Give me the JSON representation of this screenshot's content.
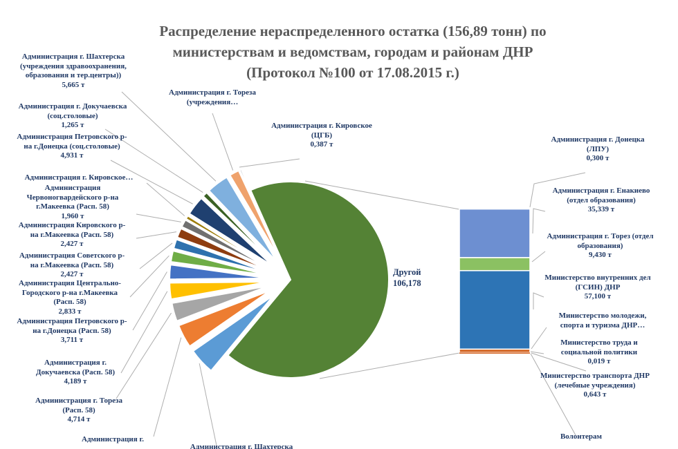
{
  "title": "Распределение нераспределенного остатка (156,89 тонн) по\nминистерствам и ведомствам, городам и районам ДНР\n(Протокол №100 от 17.08.2015 г.)",
  "chart_data": {
    "type": "pie",
    "subtype": "bar-of-pie",
    "title": "Распределение нераспределенного остатка (156,89 тонн) по министерствам и ведомствам, городам и районам ДНР (Протокол №100 от 17.08.2015 г.)",
    "total_label": "156,89 тонн",
    "units": "т",
    "legend": "none",
    "other_slice": {
      "label": "Другой",
      "value_display": "106,178",
      "value": 106.178,
      "color": "#548235"
    },
    "slices": [
      {
        "label": "Администрация г. Кировское\n(ЦГБ)",
        "value_display": "0,387 т",
        "value": 0.387,
        "color": "#44546A"
      },
      {
        "label": "Администрация  г. Тореза\n(учреждения…",
        "value_display": "",
        "value": 2.5,
        "color": "#EFA26C"
      },
      {
        "label": "Администрация г. Шахтерска\n(учреждения здравоохранения,\nобразования и тер.центры))",
        "value_display": "5,665 т",
        "value": 5.665,
        "color": "#7FB0DE"
      },
      {
        "label": "Администрация  г. Докучаевска\n(соц.столовые)",
        "value_display": "1,265 т",
        "value": 1.265,
        "color": "#3A6124"
      },
      {
        "label": "Администрация Петровского р-\nна г.Донецка (соц.столовые)",
        "value_display": "4,931 т",
        "value": 4.931,
        "color": "#1F4070"
      },
      {
        "label": "Администрация г. Кировское…",
        "value_display": "",
        "value": 0.9,
        "color": "#9D7D0A"
      },
      {
        "label": "Администрация\nЧервоногвардейского р-на\nг.Макеевка (Расп. 58)",
        "value_display": "1,960 т",
        "value": 1.96,
        "color": "#707070"
      },
      {
        "label": "Администрация Кировского р-\nна г.Макеевка (Расп. 58)",
        "value_display": "2,427 т",
        "value": 2.427,
        "color": "#8E3D10"
      },
      {
        "label": "Администрация Советского р-\nна г.Макеевка (Расп. 58)",
        "value_display": "2,427 т",
        "value": 2.427,
        "color": "#2E71AE"
      },
      {
        "label": "Администрация Центрально-\nГородского р-на г.Макеевка\n(Расп. 58)",
        "value_display": "2,833 т",
        "value": 2.833,
        "color": "#6FAD46"
      },
      {
        "label": "Администрация Петровского р-\nна г.Донецка (Расп. 58)",
        "value_display": "3,711 т",
        "value": 3.711,
        "color": "#4472C4"
      },
      {
        "label": "Администрация  г.\nДокучаевска (Расп. 58)",
        "value_display": "4,189 т",
        "value": 4.189,
        "color": "#FFC000"
      },
      {
        "label": "Администрация  г. Тореза\n(Расп. 58)",
        "value_display": "4,714 т",
        "value": 4.714,
        "color": "#A6A6A6"
      },
      {
        "label": "Администрация  г.",
        "value_display": "",
        "value": 6.0,
        "color": "#ED7D31"
      },
      {
        "label": "Администрация г. Шахтерска",
        "value_display": "",
        "value": 6.8,
        "color": "#5B9BD5"
      }
    ],
    "bar_segments": [
      {
        "label": "Администрация г. Донецка\n(ЛПУ)",
        "value_display": "0,300 т",
        "value": 0.3,
        "color": "#D2601C"
      },
      {
        "label": "Администрация г. Енакиево\n(отдел образования)",
        "value_display": "35,339 т",
        "value": 35.339,
        "color": "#6D8FD1"
      },
      {
        "label": "Администрация г. Торез (отдел\nобразования)",
        "value_display": "9,430 т",
        "value": 9.43,
        "color": "#8BC162"
      },
      {
        "label": "Министерство внутренних дел\n(ГСИН) ДНР",
        "value_display": "57,100 т",
        "value": 57.1,
        "color": "#2D74B5"
      },
      {
        "label": "Министерство молодежи,\nспорта и туризма ДНР…",
        "value_display": "",
        "value": 2.4,
        "color": "#D2601C"
      },
      {
        "label": "Министерство труда и\nсоциальной политики",
        "value_display": "0,019 т",
        "value": 0.019,
        "color": "#D2601C"
      },
      {
        "label": "Министерство транспорта ДНР\n(лечебные учреждения)",
        "value_display": "0,643 т",
        "value": 0.643,
        "color": "#D2601C"
      },
      {
        "label": "Волонтерам",
        "value_display": "",
        "value": 0.2,
        "color": "#D2601C"
      }
    ]
  }
}
